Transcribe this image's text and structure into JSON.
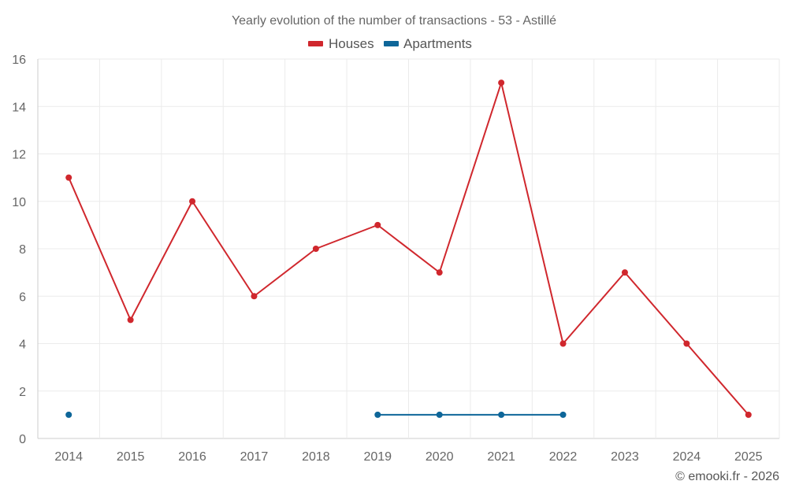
{
  "chart_data": {
    "type": "line",
    "title": "Yearly evolution of the number of transactions - 53 - Astillé",
    "categories": [
      "2014",
      "2015",
      "2016",
      "2017",
      "2018",
      "2019",
      "2020",
      "2021",
      "2022",
      "2023",
      "2024",
      "2025"
    ],
    "ylim": [
      0,
      16
    ],
    "yticks": [
      0,
      2,
      4,
      6,
      8,
      10,
      12,
      14,
      16
    ],
    "grid": true,
    "legend_position": "top-center",
    "series": [
      {
        "name": "Houses",
        "color": "#d0272d",
        "values": [
          11,
          5,
          10,
          6,
          8,
          9,
          7,
          15,
          4,
          7,
          4,
          1
        ]
      },
      {
        "name": "Apartments",
        "color": "#0e6699",
        "values": [
          1,
          null,
          null,
          null,
          null,
          1,
          1,
          1,
          1,
          null,
          null,
          null
        ]
      }
    ]
  },
  "credit": "© emooki.fr - 2026"
}
